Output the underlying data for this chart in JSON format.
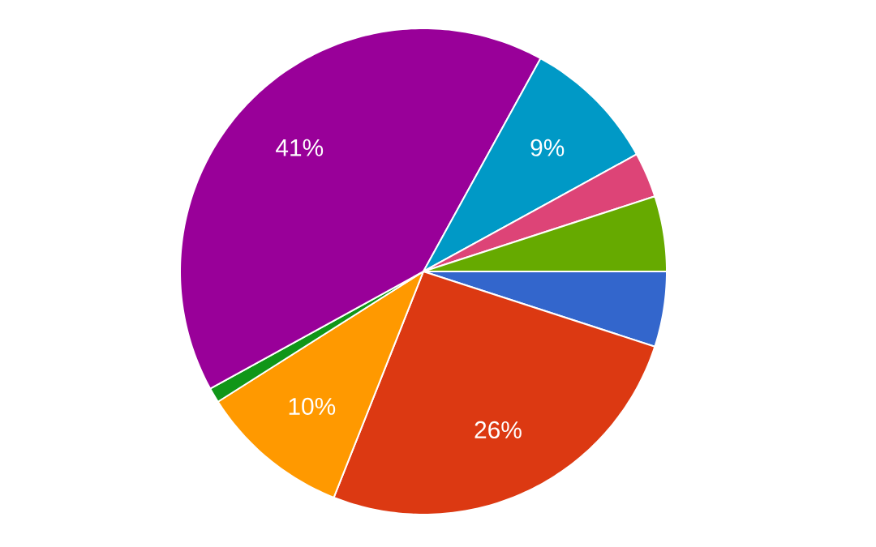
{
  "chart_data": {
    "type": "pie",
    "categories": [
      null,
      null,
      null,
      null,
      null,
      null,
      null,
      null
    ],
    "values": [
      5,
      26,
      10,
      1,
      41,
      9,
      3,
      5
    ],
    "colors": [
      "#3366cc",
      "#dc3912",
      "#ff9900",
      "#109618",
      "#990099",
      "#0099c6",
      "#dd4477",
      "#66aa00"
    ],
    "value_labels": [
      null,
      "26%",
      "10%",
      null,
      "41%",
      "9%",
      null,
      null
    ]
  }
}
